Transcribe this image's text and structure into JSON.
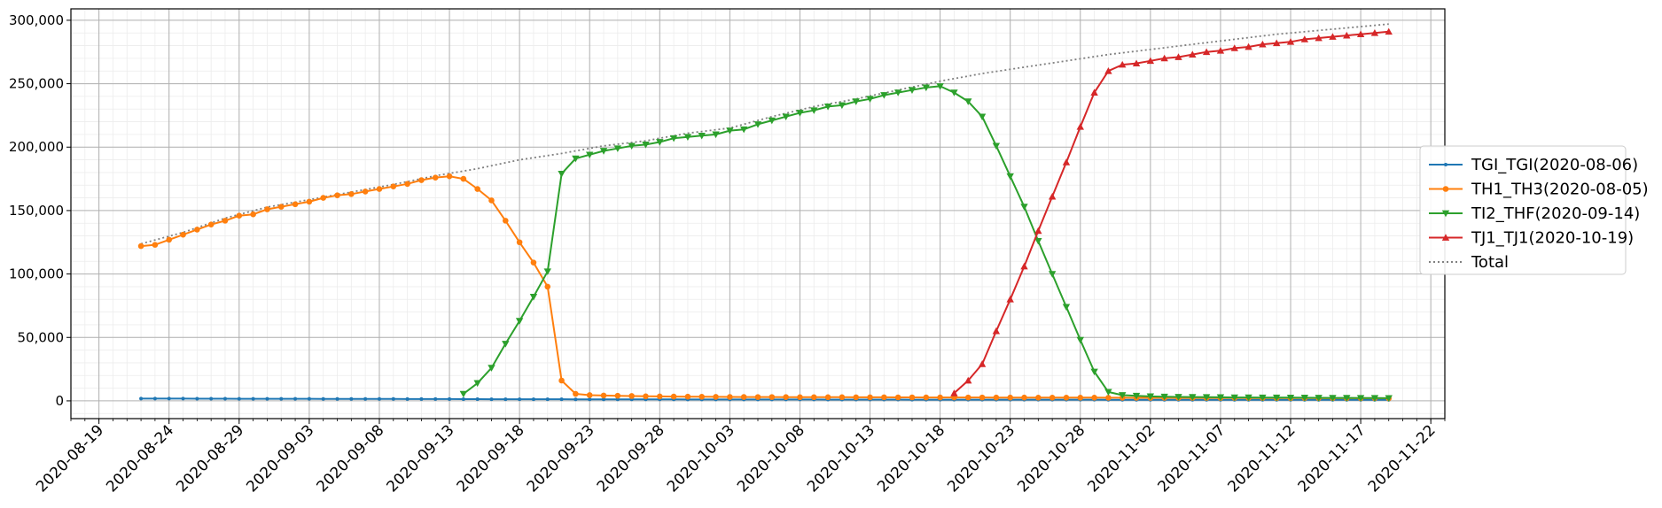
{
  "chart_data": {
    "type": "line",
    "title": "",
    "xlabel": "",
    "ylabel": "",
    "x_axis": {
      "type": "date",
      "range": [
        "2020-08-17",
        "2020-11-23"
      ],
      "tick_labels": [
        "2020-08-19",
        "2020-08-24",
        "2020-08-29",
        "2020-09-03",
        "2020-09-08",
        "2020-09-13",
        "2020-09-18",
        "2020-09-23",
        "2020-09-28",
        "2020-10-03",
        "2020-10-08",
        "2020-10-13",
        "2020-10-18",
        "2020-10-23",
        "2020-10-28",
        "2020-11-02",
        "2020-11-07",
        "2020-11-12",
        "2020-11-17",
        "2020-11-22"
      ]
    },
    "y_axis": {
      "range": [
        -14000,
        309000
      ],
      "tick_values": [
        0,
        50000,
        100000,
        150000,
        200000,
        250000,
        300000
      ],
      "tick_labels": [
        "0",
        "50,000",
        "100,000",
        "150,000",
        "200,000",
        "250,000",
        "300,000"
      ]
    },
    "grid": true,
    "legend_position": "center-right",
    "series": [
      {
        "name": "TGI_TGI(2020-08-06)",
        "color": "#1f77b4",
        "marker": "point",
        "x": [
          "2020-08-22",
          "2020-08-23",
          "2020-08-24",
          "2020-08-25",
          "2020-08-26",
          "2020-08-27",
          "2020-08-28",
          "2020-08-29",
          "2020-08-30",
          "2020-08-31",
          "2020-09-01",
          "2020-09-02",
          "2020-09-03",
          "2020-09-04",
          "2020-09-05",
          "2020-09-06",
          "2020-09-07",
          "2020-09-08",
          "2020-09-09",
          "2020-09-10",
          "2020-09-11",
          "2020-09-12",
          "2020-09-13",
          "2020-09-14",
          "2020-09-15",
          "2020-09-16",
          "2020-09-17",
          "2020-09-18",
          "2020-09-19",
          "2020-09-20",
          "2020-09-21",
          "2020-09-22",
          "2020-09-23",
          "2020-09-24",
          "2020-09-25",
          "2020-09-26",
          "2020-09-27",
          "2020-09-28",
          "2020-09-29",
          "2020-09-30",
          "2020-10-01",
          "2020-10-02",
          "2020-10-03",
          "2020-10-04",
          "2020-10-05",
          "2020-10-06",
          "2020-10-07",
          "2020-10-08",
          "2020-10-09",
          "2020-10-10",
          "2020-10-11",
          "2020-10-12",
          "2020-10-13",
          "2020-10-14",
          "2020-10-15",
          "2020-10-16",
          "2020-10-17",
          "2020-10-18",
          "2020-10-19",
          "2020-10-20",
          "2020-10-21",
          "2020-10-22",
          "2020-10-23",
          "2020-10-24",
          "2020-10-25",
          "2020-10-26",
          "2020-10-27",
          "2020-10-28",
          "2020-10-29",
          "2020-10-30",
          "2020-10-31",
          "2020-11-01",
          "2020-11-02",
          "2020-11-03",
          "2020-11-04",
          "2020-11-05",
          "2020-11-06",
          "2020-11-07",
          "2020-11-08",
          "2020-11-09",
          "2020-11-10",
          "2020-11-11",
          "2020-11-12",
          "2020-11-13",
          "2020-11-14",
          "2020-11-15",
          "2020-11-16",
          "2020-11-17",
          "2020-11-18",
          "2020-11-19"
        ],
        "values": [
          1800,
          1800,
          1750,
          1750,
          1700,
          1700,
          1700,
          1650,
          1650,
          1650,
          1600,
          1600,
          1600,
          1550,
          1550,
          1550,
          1500,
          1500,
          1500,
          1450,
          1450,
          1400,
          1400,
          1350,
          1350,
          1300,
          1300,
          1300,
          1250,
          1250,
          1250,
          1200,
          1200,
          1200,
          1200,
          1150,
          1150,
          1150,
          1150,
          1100,
          1100,
          1100,
          1100,
          1100,
          1050,
          1050,
          1050,
          1050,
          1050,
          1000,
          1000,
          1000,
          1000,
          1000,
          1000,
          950,
          950,
          950,
          950,
          950,
          950,
          900,
          900,
          900,
          900,
          900,
          900,
          900,
          900,
          850,
          850,
          850,
          850,
          850,
          850,
          850,
          850,
          850,
          800,
          800,
          800,
          800,
          800,
          800,
          800,
          800,
          800,
          800,
          800,
          800
        ]
      },
      {
        "name": "TH1_TH3(2020-08-05)",
        "color": "#ff7f0e",
        "marker": "circle",
        "x": [
          "2020-08-22",
          "2020-08-23",
          "2020-08-24",
          "2020-08-25",
          "2020-08-26",
          "2020-08-27",
          "2020-08-28",
          "2020-08-29",
          "2020-08-30",
          "2020-08-31",
          "2020-09-01",
          "2020-09-02",
          "2020-09-03",
          "2020-09-04",
          "2020-09-05",
          "2020-09-06",
          "2020-09-07",
          "2020-09-08",
          "2020-09-09",
          "2020-09-10",
          "2020-09-11",
          "2020-09-12",
          "2020-09-13",
          "2020-09-14",
          "2020-09-15",
          "2020-09-16",
          "2020-09-17",
          "2020-09-18",
          "2020-09-19",
          "2020-09-20",
          "2020-09-21",
          "2020-09-22",
          "2020-09-23",
          "2020-09-24",
          "2020-09-25",
          "2020-09-26",
          "2020-09-27",
          "2020-09-28",
          "2020-09-29",
          "2020-09-30",
          "2020-10-01",
          "2020-10-02",
          "2020-10-03",
          "2020-10-04",
          "2020-10-05",
          "2020-10-06",
          "2020-10-07",
          "2020-10-08",
          "2020-10-09",
          "2020-10-10",
          "2020-10-11",
          "2020-10-12",
          "2020-10-13",
          "2020-10-14",
          "2020-10-15",
          "2020-10-16",
          "2020-10-17",
          "2020-10-18",
          "2020-10-19",
          "2020-10-20",
          "2020-10-21",
          "2020-10-22",
          "2020-10-23",
          "2020-10-24",
          "2020-10-25",
          "2020-10-26",
          "2020-10-27",
          "2020-10-28",
          "2020-10-29",
          "2020-10-30",
          "2020-10-31",
          "2020-11-01",
          "2020-11-02",
          "2020-11-03",
          "2020-11-04",
          "2020-11-05",
          "2020-11-06",
          "2020-11-07",
          "2020-11-08",
          "2020-11-09",
          "2020-11-10",
          "2020-11-11",
          "2020-11-12",
          "2020-11-13",
          "2020-11-14",
          "2020-11-15",
          "2020-11-16",
          "2020-11-17",
          "2020-11-18",
          "2020-11-19"
        ],
        "values": [
          122000,
          123000,
          127000,
          131000,
          135000,
          139000,
          142000,
          146000,
          147000,
          151000,
          153000,
          155000,
          157000,
          160000,
          162000,
          163000,
          165000,
          167000,
          169000,
          171000,
          174000,
          176000,
          177000,
          175000,
          167000,
          158000,
          142000,
          125000,
          109000,
          90000,
          16000,
          5500,
          4500,
          4200,
          4000,
          3800,
          3600,
          3500,
          3400,
          3300,
          3200,
          3150,
          3100,
          3050,
          3000,
          3000,
          2950,
          2900,
          2900,
          2850,
          2850,
          2800,
          2800,
          2800,
          2750,
          2750,
          2700,
          2700,
          2700,
          2650,
          2650,
          2600,
          2600,
          2600,
          2550,
          2550,
          2500,
          2500,
          2500,
          2450,
          2450,
          2400,
          2400,
          2400,
          2350,
          2350,
          2300,
          2300,
          2300,
          2250,
          2250,
          2200,
          2200,
          2200,
          2150,
          2150,
          2100,
          2100,
          2100,
          2050
        ]
      },
      {
        "name": "TI2_THF(2020-09-14)",
        "color": "#2ca02c",
        "marker": "triangle-down",
        "x": [
          "2020-09-14",
          "2020-09-15",
          "2020-09-16",
          "2020-09-17",
          "2020-09-18",
          "2020-09-19",
          "2020-09-20",
          "2020-09-21",
          "2020-09-22",
          "2020-09-23",
          "2020-09-24",
          "2020-09-25",
          "2020-09-26",
          "2020-09-27",
          "2020-09-28",
          "2020-09-29",
          "2020-09-30",
          "2020-10-01",
          "2020-10-02",
          "2020-10-03",
          "2020-10-04",
          "2020-10-05",
          "2020-10-06",
          "2020-10-07",
          "2020-10-08",
          "2020-10-09",
          "2020-10-10",
          "2020-10-11",
          "2020-10-12",
          "2020-10-13",
          "2020-10-14",
          "2020-10-15",
          "2020-10-16",
          "2020-10-17",
          "2020-10-18",
          "2020-10-19",
          "2020-10-20",
          "2020-10-21",
          "2020-10-22",
          "2020-10-23",
          "2020-10-24",
          "2020-10-25",
          "2020-10-26",
          "2020-10-27",
          "2020-10-28",
          "2020-10-29",
          "2020-10-30",
          "2020-10-31",
          "2020-11-01",
          "2020-11-02",
          "2020-11-03",
          "2020-11-04",
          "2020-11-05",
          "2020-11-06",
          "2020-11-07",
          "2020-11-08",
          "2020-11-09",
          "2020-11-10",
          "2020-11-11",
          "2020-11-12",
          "2020-11-13",
          "2020-11-14",
          "2020-11-15",
          "2020-11-16",
          "2020-11-17",
          "2020-11-18",
          "2020-11-19"
        ],
        "values": [
          5500,
          14000,
          26000,
          45000,
          63000,
          82000,
          102000,
          179000,
          191000,
          194000,
          197000,
          199000,
          201000,
          202000,
          204000,
          207000,
          208000,
          209000,
          210000,
          213000,
          214000,
          218000,
          221000,
          224000,
          227000,
          229000,
          232000,
          233000,
          236000,
          238000,
          241000,
          243000,
          245000,
          247000,
          248000,
          243000,
          236000,
          224000,
          201000,
          177000,
          153000,
          126000,
          100000,
          74000,
          48000,
          23000,
          7000,
          4500,
          4000,
          3500,
          3300,
          3100,
          3000,
          2900,
          2800,
          2700,
          2650,
          2600,
          2550,
          2500,
          2450,
          2400,
          2350,
          2300,
          2250,
          2200,
          2150
        ]
      },
      {
        "name": "TJ1_TJ1(2020-10-19)",
        "color": "#d62728",
        "marker": "triangle-up",
        "x": [
          "2020-10-19",
          "2020-10-20",
          "2020-10-21",
          "2020-10-22",
          "2020-10-23",
          "2020-10-24",
          "2020-10-25",
          "2020-10-26",
          "2020-10-27",
          "2020-10-28",
          "2020-10-29",
          "2020-10-30",
          "2020-10-31",
          "2020-11-01",
          "2020-11-02",
          "2020-11-03",
          "2020-11-04",
          "2020-11-05",
          "2020-11-06",
          "2020-11-07",
          "2020-11-08",
          "2020-11-09",
          "2020-11-10",
          "2020-11-11",
          "2020-11-12",
          "2020-11-13",
          "2020-11-14",
          "2020-11-15",
          "2020-11-16",
          "2020-11-17",
          "2020-11-18",
          "2020-11-19"
        ],
        "values": [
          6000,
          16000,
          29000,
          55000,
          80000,
          106000,
          134000,
          161000,
          188000,
          216000,
          243000,
          260000,
          265000,
          266000,
          268000,
          270000,
          271000,
          273000,
          275000,
          276000,
          278000,
          279000,
          281000,
          282000,
          283000,
          285000,
          286000,
          287000,
          288000,
          289000,
          290000,
          291000
        ]
      },
      {
        "name": "Total",
        "color": "#808080",
        "style": "dotted",
        "x": [
          "2020-08-22",
          "2020-08-25",
          "2020-08-28",
          "2020-08-31",
          "2020-09-03",
          "2020-09-06",
          "2020-09-09",
          "2020-09-12",
          "2020-09-15",
          "2020-09-18",
          "2020-09-21",
          "2020-09-24",
          "2020-09-27",
          "2020-09-30",
          "2020-10-03",
          "2020-10-06",
          "2020-10-09",
          "2020-10-12",
          "2020-10-15",
          "2020-10-18",
          "2020-10-21",
          "2020-10-24",
          "2020-10-27",
          "2020-10-30",
          "2020-11-02",
          "2020-11-05",
          "2020-11-08",
          "2020-11-11",
          "2020-11-14",
          "2020-11-17",
          "2020-11-19"
        ],
        "values": [
          123800,
          132800,
          144000,
          152700,
          158600,
          164600,
          170500,
          177400,
          183000,
          190000,
          195000,
          201000,
          205000,
          211000,
          215000,
          224000,
          232000,
          238000,
          245000,
          252000,
          258000,
          263000,
          268000,
          273000,
          277000,
          281000,
          285000,
          289000,
          292000,
          295000,
          297000
        ]
      }
    ]
  }
}
